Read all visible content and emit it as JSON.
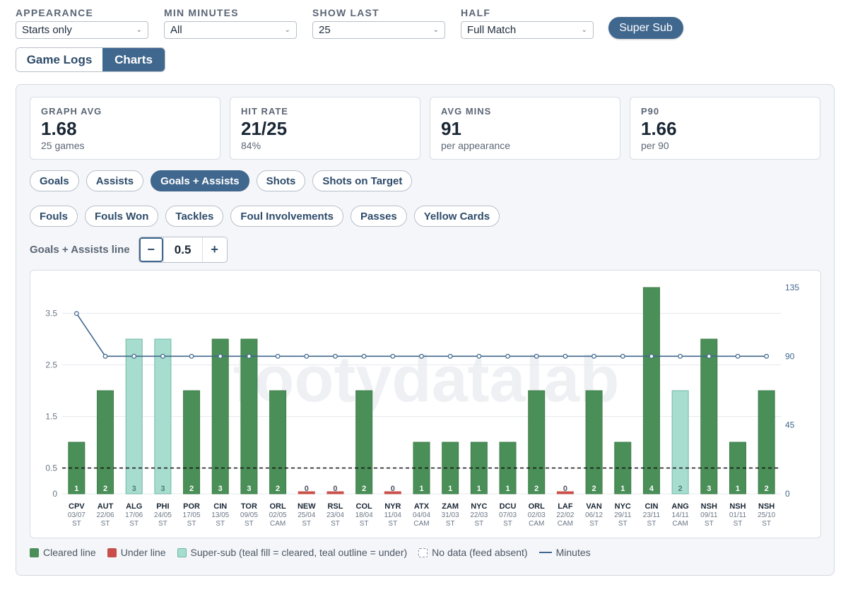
{
  "filters": [
    {
      "label": "APPEARANCE",
      "value": "Starts only"
    },
    {
      "label": "MIN MINUTES",
      "value": "All"
    },
    {
      "label": "SHOW LAST",
      "value": "25"
    },
    {
      "label": "HALF",
      "value": "Full Match"
    }
  ],
  "super_sub_label": "Super Sub",
  "view_tabs": {
    "game_logs": "Game Logs",
    "charts": "Charts",
    "active": "Charts"
  },
  "stats": [
    {
      "label": "GRAPH AVG",
      "value": "1.68",
      "sub": "25 games"
    },
    {
      "label": "HIT RATE",
      "value": "21/25",
      "sub": "84%"
    },
    {
      "label": "AVG MINS",
      "value": "91",
      "sub": "per appearance"
    },
    {
      "label": "P90",
      "value": "1.66",
      "sub": "per 90"
    }
  ],
  "metric_pills_row1": [
    "Goals",
    "Assists",
    "Goals + Assists",
    "Shots",
    "Shots on Target"
  ],
  "metric_pills_row2": [
    "Fouls",
    "Fouls Won",
    "Tackles",
    "Foul Involvements",
    "Passes",
    "Yellow Cards"
  ],
  "active_metric": "Goals + Assists",
  "line_control": {
    "label": "Goals + Assists line",
    "minus": "−",
    "value": "0.5",
    "plus": "+"
  },
  "watermark": "footydatalab",
  "legend": [
    {
      "key": "green",
      "label": "Cleared line"
    },
    {
      "key": "red",
      "label": "Under line"
    },
    {
      "key": "teal",
      "label": "Super-sub (teal fill = cleared, teal outline = under)"
    },
    {
      "key": "dash",
      "label": "No data (feed absent)"
    },
    {
      "key": "line",
      "label": "Minutes"
    }
  ],
  "colors": {
    "cleared": "#4a8f57",
    "under": "#c9504a",
    "supersub": "#a7ddcf",
    "minutes": "#40678e",
    "accent": "#40678e"
  },
  "chart_data": {
    "type": "bar",
    "line_threshold": 0.5,
    "y_left": {
      "ticks": [
        "0",
        "0.5",
        "1.5",
        "2.5",
        "3.5"
      ],
      "ylim": [
        0,
        4
      ]
    },
    "y_right": {
      "ticks": [
        "0",
        "45",
        "90",
        "135"
      ],
      "ylim": [
        0,
        135
      ]
    },
    "categories": [
      {
        "team": "CPV",
        "date": "03/07",
        "pos": "ST",
        "value": 1,
        "status": "cleared",
        "minutes": 118
      },
      {
        "team": "AUT",
        "date": "22/06",
        "pos": "ST",
        "value": 2,
        "status": "cleared",
        "minutes": 90
      },
      {
        "team": "ALG",
        "date": "17/06",
        "pos": "ST",
        "value": 3,
        "status": "supersub",
        "minutes": 90
      },
      {
        "team": "PHI",
        "date": "24/05",
        "pos": "ST",
        "value": 3,
        "status": "supersub",
        "minutes": 90
      },
      {
        "team": "POR",
        "date": "17/05",
        "pos": "ST",
        "value": 2,
        "status": "cleared",
        "minutes": 90
      },
      {
        "team": "CIN",
        "date": "13/05",
        "pos": "ST",
        "value": 3,
        "status": "cleared",
        "minutes": 90
      },
      {
        "team": "TOR",
        "date": "09/05",
        "pos": "ST",
        "value": 3,
        "status": "cleared",
        "minutes": 90
      },
      {
        "team": "ORL",
        "date": "02/05",
        "pos": "CAM",
        "value": 2,
        "status": "cleared",
        "minutes": 90
      },
      {
        "team": "NEW",
        "date": "25/04",
        "pos": "ST",
        "value": 0,
        "status": "under",
        "minutes": 90
      },
      {
        "team": "RSL",
        "date": "23/04",
        "pos": "ST",
        "value": 0,
        "status": "under",
        "minutes": 90
      },
      {
        "team": "COL",
        "date": "18/04",
        "pos": "ST",
        "value": 2,
        "status": "cleared",
        "minutes": 90
      },
      {
        "team": "NYR",
        "date": "11/04",
        "pos": "ST",
        "value": 0,
        "status": "under",
        "minutes": 90
      },
      {
        "team": "ATX",
        "date": "04/04",
        "pos": "CAM",
        "value": 1,
        "status": "cleared",
        "minutes": 90
      },
      {
        "team": "ZAM",
        "date": "31/03",
        "pos": "ST",
        "value": 1,
        "status": "cleared",
        "minutes": 90
      },
      {
        "team": "NYC",
        "date": "22/03",
        "pos": "ST",
        "value": 1,
        "status": "cleared",
        "minutes": 90
      },
      {
        "team": "DCU",
        "date": "07/03",
        "pos": "ST",
        "value": 1,
        "status": "cleared",
        "minutes": 90
      },
      {
        "team": "ORL",
        "date": "02/03",
        "pos": "CAM",
        "value": 2,
        "status": "cleared",
        "minutes": 90
      },
      {
        "team": "LAF",
        "date": "22/02",
        "pos": "CAM",
        "value": 0,
        "status": "under",
        "minutes": 90
      },
      {
        "team": "VAN",
        "date": "06/12",
        "pos": "ST",
        "value": 2,
        "status": "cleared",
        "minutes": 90
      },
      {
        "team": "NYC",
        "date": "29/11",
        "pos": "ST",
        "value": 1,
        "status": "cleared",
        "minutes": 90
      },
      {
        "team": "CIN",
        "date": "23/11",
        "pos": "ST",
        "value": 4,
        "status": "cleared",
        "minutes": 90
      },
      {
        "team": "ANG",
        "date": "14/11",
        "pos": "CAM",
        "value": 2,
        "status": "supersub",
        "minutes": 90
      },
      {
        "team": "NSH",
        "date": "09/11",
        "pos": "ST",
        "value": 3,
        "status": "cleared",
        "minutes": 90
      },
      {
        "team": "NSH",
        "date": "01/11",
        "pos": "ST",
        "value": 1,
        "status": "cleared",
        "minutes": 90
      },
      {
        "team": "NSH",
        "date": "25/10",
        "pos": "ST",
        "value": 2,
        "status": "cleared",
        "minutes": 90
      }
    ]
  }
}
